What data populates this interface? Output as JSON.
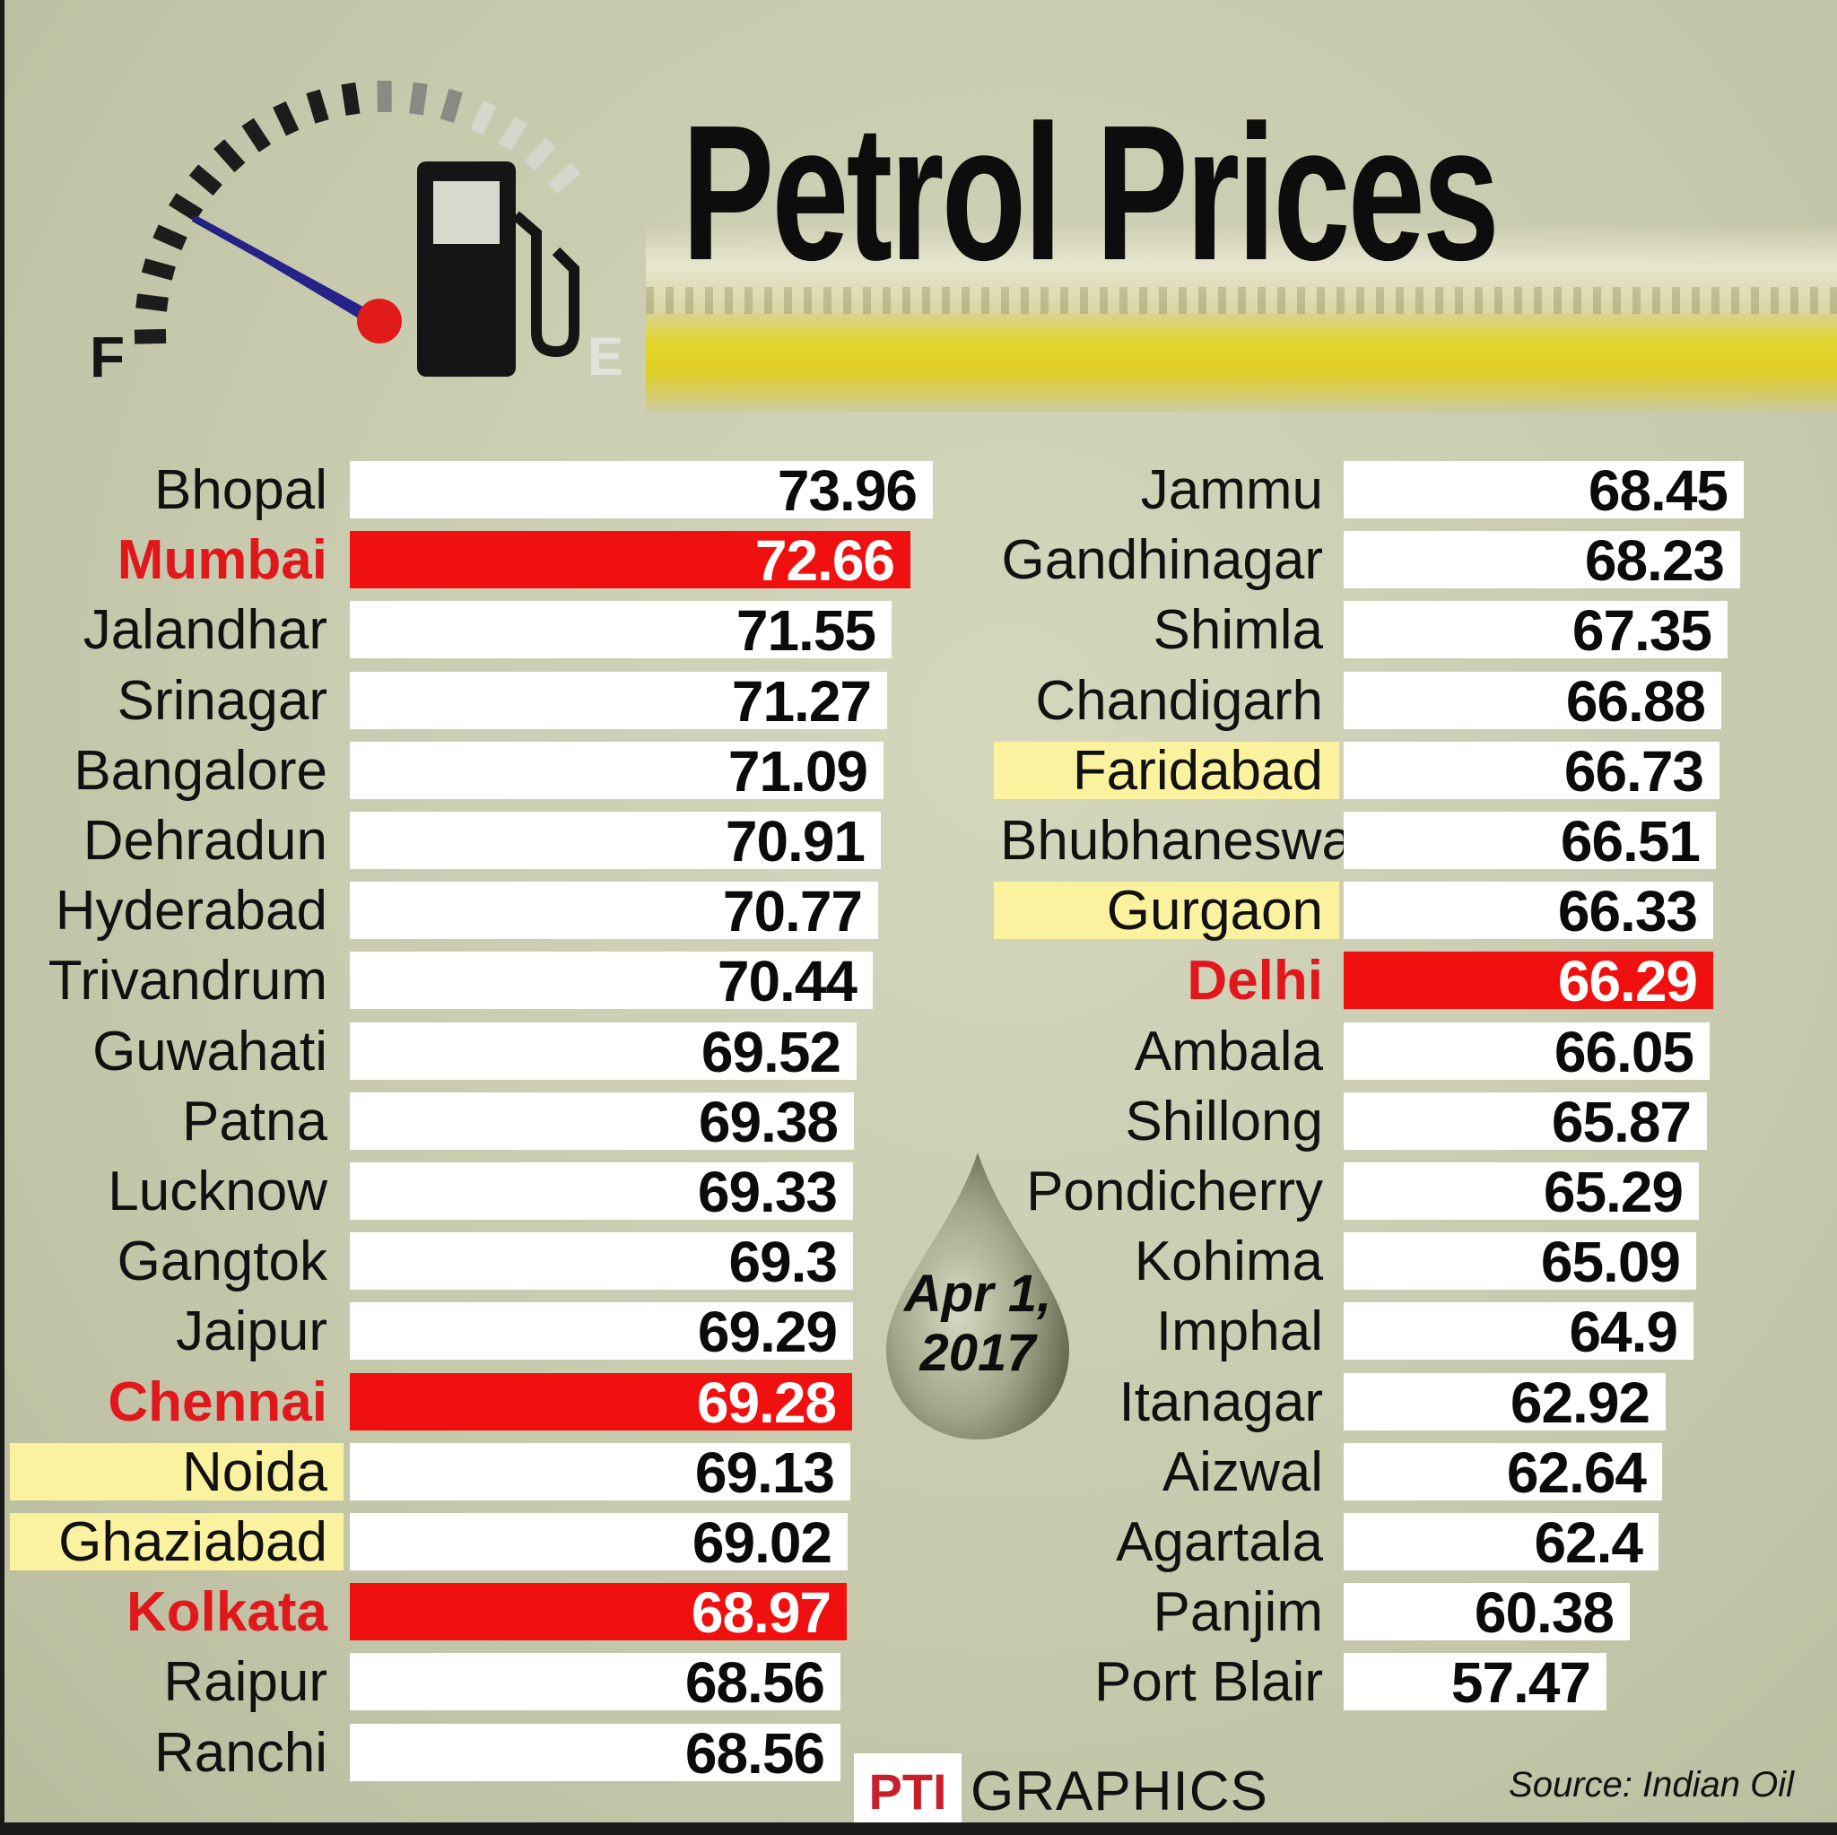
{
  "title": "Petrol Prices",
  "date_line1": "Apr 1,",
  "date_line2": "2017",
  "gauge": {
    "full_label": "F",
    "empty_label": "E"
  },
  "footer": {
    "logo_text": "PTI",
    "graphics_label": "GRAPHICS",
    "source": "Source: Indian Oil"
  },
  "colors": {
    "background": "#c6c8aa",
    "metro_highlight": "#f01010",
    "ncr_highlight": "#fbf2a0",
    "bar": "#ffffff"
  },
  "chart_data": {
    "type": "bar",
    "orientation": "horizontal",
    "title": "Petrol Prices",
    "columns": [
      {
        "categories": [
          "Bhopal",
          "Mumbai",
          "Jalandhar",
          "Srinagar",
          "Bangalore",
          "Dehradun",
          "Hyderabad",
          "Trivandrum",
          "Guwahati",
          "Patna",
          "Lucknow",
          "Gangtok",
          "Jaipur",
          "Chennai",
          "Noida",
          "Ghaziabad",
          "Kolkata",
          "Raipur",
          "Ranchi"
        ],
        "values": [
          "73.96",
          "72.66",
          "71.55",
          "71.27",
          "71.09",
          "70.91",
          "70.77",
          "70.44",
          "69.52",
          "69.38",
          "69.33",
          "69.3",
          "69.29",
          "69.28",
          "69.13",
          "69.02",
          "68.97",
          "68.56",
          "68.56"
        ],
        "highlight": [
          "",
          "metro",
          "",
          "",
          "",
          "",
          "",
          "",
          "",
          "",
          "",
          "",
          "",
          "metro",
          "ncr",
          "ncr",
          "metro",
          "",
          ""
        ]
      },
      {
        "categories": [
          "Jammu",
          "Gandhinagar",
          "Shimla",
          "Chandigarh",
          "Faridabad",
          "Bhubhaneswar",
          "Gurgaon",
          "Delhi",
          "Ambala",
          "Shillong",
          "Pondicherry",
          "Kohima",
          "Imphal",
          "Itanagar",
          "Aizwal",
          "Agartala",
          "Panjim",
          "Port Blair"
        ],
        "values": [
          "68.45",
          "68.23",
          "67.35",
          "66.88",
          "66.73",
          "66.51",
          "66.33",
          "66.29",
          "66.05",
          "65.87",
          "65.29",
          "65.09",
          "64.9",
          "62.92",
          "62.64",
          "62.4",
          "60.38",
          "57.47"
        ],
        "highlight": [
          "",
          "",
          "",
          "",
          "ncr",
          "",
          "ncr",
          "metro",
          "",
          "",
          "",
          "",
          "",
          "",
          "",
          "",
          "",
          ""
        ]
      }
    ]
  }
}
